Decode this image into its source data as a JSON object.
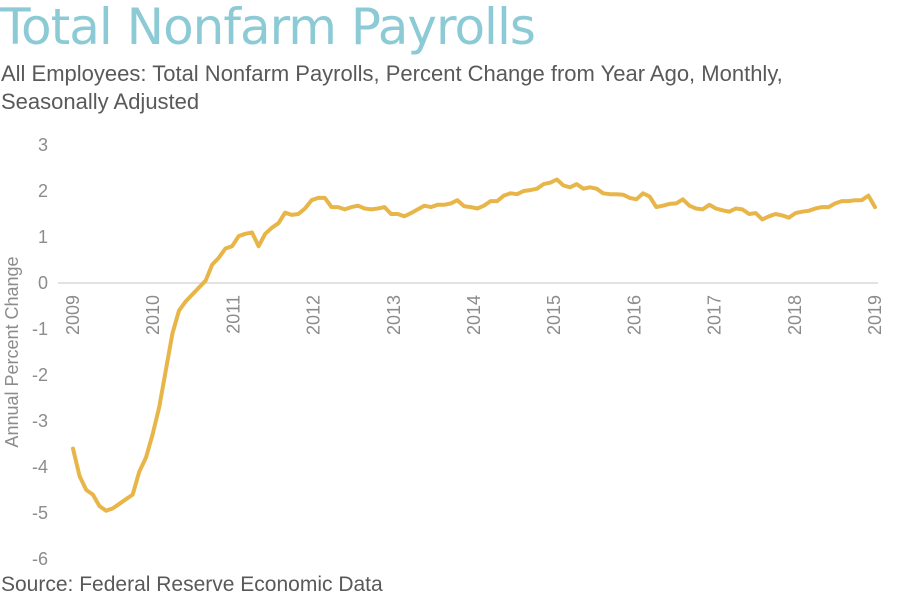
{
  "title": "Total Nonfarm Payrolls",
  "subtitle": "All Employees: Total Nonfarm Payrolls, Percent Change from Year Ago, Monthly, Seasonally Adjusted",
  "source": "Source: Federal Reserve Economic Data",
  "colors": {
    "title": "#8ccbd6",
    "line": "#e8b548",
    "text": "#595959",
    "axis": "#8c8c8c"
  },
  "chart_data": {
    "type": "line",
    "title": "Total Nonfarm Payrolls",
    "ylabel": "Annual Percent Change",
    "xlabel": "",
    "ylim": [
      -6,
      3
    ],
    "yticks": [
      "3",
      "2",
      "1",
      "0",
      "-1",
      "-2",
      "-3",
      "-4",
      "-5",
      "-6"
    ],
    "xticks": [
      "2009",
      "2010",
      "2011",
      "2012",
      "2013",
      "2014",
      "2015",
      "2016",
      "2017",
      "2018",
      "2019"
    ],
    "grid": false,
    "legend": "none",
    "x_start": "2009-01",
    "x_end": "2019-01",
    "series": [
      {
        "values": [
          -3.6,
          -4.2,
          -4.5,
          -4.6,
          -4.85,
          -4.95,
          -4.9,
          -4.8,
          -4.7,
          -4.6,
          -4.1,
          -3.8,
          -3.3,
          -2.7,
          -1.9,
          -1.1,
          -0.6,
          -0.4,
          -0.25,
          -0.1,
          0.05,
          0.4,
          0.55,
          0.75,
          0.8,
          1.02,
          1.07,
          1.1,
          0.8,
          1.07,
          1.2,
          1.3,
          1.53,
          1.48,
          1.5,
          1.62,
          1.8,
          1.85,
          1.85,
          1.65,
          1.65,
          1.6,
          1.65,
          1.68,
          1.62,
          1.6,
          1.62,
          1.65,
          1.5,
          1.5,
          1.45,
          1.52,
          1.6,
          1.68,
          1.65,
          1.7,
          1.7,
          1.73,
          1.8,
          1.67,
          1.65,
          1.62,
          1.68,
          1.78,
          1.78,
          1.9,
          1.95,
          1.93,
          2.0,
          2.02,
          2.05,
          2.15,
          2.18,
          2.25,
          2.12,
          2.08,
          2.15,
          2.05,
          2.08,
          2.05,
          1.95,
          1.93,
          1.93,
          1.92,
          1.85,
          1.82,
          1.95,
          1.88,
          1.65,
          1.68,
          1.72,
          1.73,
          1.82,
          1.68,
          1.62,
          1.6,
          1.7,
          1.62,
          1.58,
          1.55,
          1.62,
          1.6,
          1.5,
          1.52,
          1.38,
          1.45,
          1.5,
          1.47,
          1.42,
          1.52,
          1.55,
          1.57,
          1.62,
          1.65,
          1.65,
          1.73,
          1.78,
          1.78,
          1.8,
          1.8,
          1.9,
          1.65
        ]
      }
    ]
  }
}
